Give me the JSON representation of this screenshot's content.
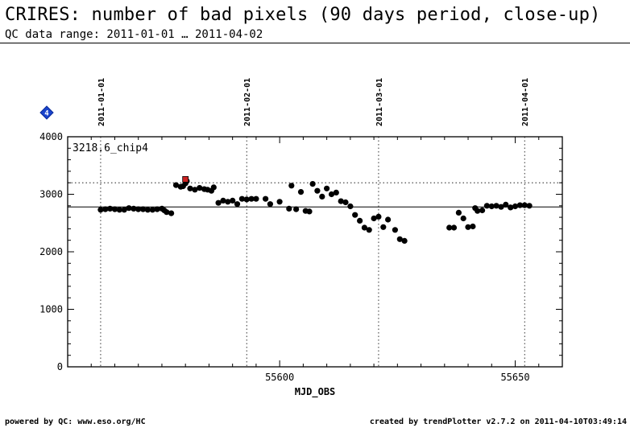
{
  "header": {
    "title": "CRIRES: number of bad pixels (90 days period, close-up)",
    "subtitle": "QC data range: 2011-01-01 … 2011-04-02"
  },
  "footer": {
    "left": "powered by QC: www.eso.org/HC",
    "right": "created by trendPlotter v2.7.2 on 2011-04-10T03:49:14"
  },
  "colors": {
    "points": "#000000",
    "highlight": "#cc2222",
    "marker": "#1a44cc"
  },
  "marker_icon": {
    "name": "diamond-marker-icon",
    "label": "4"
  },
  "chart_data": {
    "type": "scatter",
    "xlabel": "MJD_OBS",
    "xlim": [
      55555,
      55660
    ],
    "ylim": [
      0,
      4000
    ],
    "x_ticks": [
      55600,
      55650
    ],
    "y_ticks": [
      0,
      1000,
      2000,
      3000,
      4000
    ],
    "date_markers": [
      {
        "mjd": 55562,
        "label": "2011-01-01"
      },
      {
        "mjd": 55593,
        "label": "2011-02-01"
      },
      {
        "mjd": 55621,
        "label": "2011-03-01"
      },
      {
        "mjd": 55652,
        "label": "2011-04-01"
      }
    ],
    "annotation": "3218.6_chip4",
    "reference_lines": {
      "solid": 2780,
      "dotted": 3200
    },
    "highlight_point": {
      "x": 55580,
      "y": 3260
    },
    "points": [
      [
        55562,
        2730
      ],
      [
        55563,
        2740
      ],
      [
        55564,
        2750
      ],
      [
        55565,
        2740
      ],
      [
        55566,
        2730
      ],
      [
        55567,
        2730
      ],
      [
        55568,
        2760
      ],
      [
        55569,
        2750
      ],
      [
        55570,
        2740
      ],
      [
        55571,
        2740
      ],
      [
        55572,
        2730
      ],
      [
        55573,
        2730
      ],
      [
        55574,
        2740
      ],
      [
        55575,
        2750
      ],
      [
        55575.5,
        2720
      ],
      [
        55576,
        2690
      ],
      [
        55577,
        2670
      ],
      [
        55578,
        3160
      ],
      [
        55579,
        3130
      ],
      [
        55579.5,
        3140
      ],
      [
        55580,
        3190
      ],
      [
        55580.3,
        3230
      ],
      [
        55581,
        3100
      ],
      [
        55582,
        3080
      ],
      [
        55583,
        3110
      ],
      [
        55584,
        3090
      ],
      [
        55584.7,
        3080
      ],
      [
        55585.5,
        3060
      ],
      [
        55586,
        3120
      ],
      [
        55587,
        2850
      ],
      [
        55588,
        2890
      ],
      [
        55589,
        2870
      ],
      [
        55590,
        2890
      ],
      [
        55591,
        2830
      ],
      [
        55592,
        2920
      ],
      [
        55593,
        2910
      ],
      [
        55594,
        2920
      ],
      [
        55595,
        2920
      ],
      [
        55597,
        2920
      ],
      [
        55598,
        2830
      ],
      [
        55600,
        2870
      ],
      [
        55602,
        2750
      ],
      [
        55602.5,
        3150
      ],
      [
        55603.5,
        2740
      ],
      [
        55604.5,
        3040
      ],
      [
        55605.5,
        2710
      ],
      [
        55606.3,
        2700
      ],
      [
        55607,
        3180
      ],
      [
        55608,
        3060
      ],
      [
        55609,
        2960
      ],
      [
        55610,
        3100
      ],
      [
        55611,
        3000
      ],
      [
        55612,
        3030
      ],
      [
        55613,
        2880
      ],
      [
        55614,
        2860
      ],
      [
        55615,
        2790
      ],
      [
        55616,
        2640
      ],
      [
        55617,
        2540
      ],
      [
        55618,
        2420
      ],
      [
        55619,
        2380
      ],
      [
        55620,
        2580
      ],
      [
        55621,
        2610
      ],
      [
        55622,
        2430
      ],
      [
        55623,
        2560
      ],
      [
        55624.5,
        2380
      ],
      [
        55625.5,
        2220
      ],
      [
        55626.5,
        2190
      ],
      [
        55636,
        2420
      ],
      [
        55637,
        2420
      ],
      [
        55638,
        2680
      ],
      [
        55639,
        2580
      ],
      [
        55640,
        2430
      ],
      [
        55641,
        2440
      ],
      [
        55641.5,
        2760
      ],
      [
        55642,
        2710
      ],
      [
        55643,
        2720
      ],
      [
        55644,
        2800
      ],
      [
        55645,
        2790
      ],
      [
        55646,
        2800
      ],
      [
        55647,
        2780
      ],
      [
        55648,
        2820
      ],
      [
        55649,
        2770
      ],
      [
        55650,
        2790
      ],
      [
        55651,
        2810
      ],
      [
        55652,
        2810
      ],
      [
        55653,
        2800
      ]
    ]
  }
}
